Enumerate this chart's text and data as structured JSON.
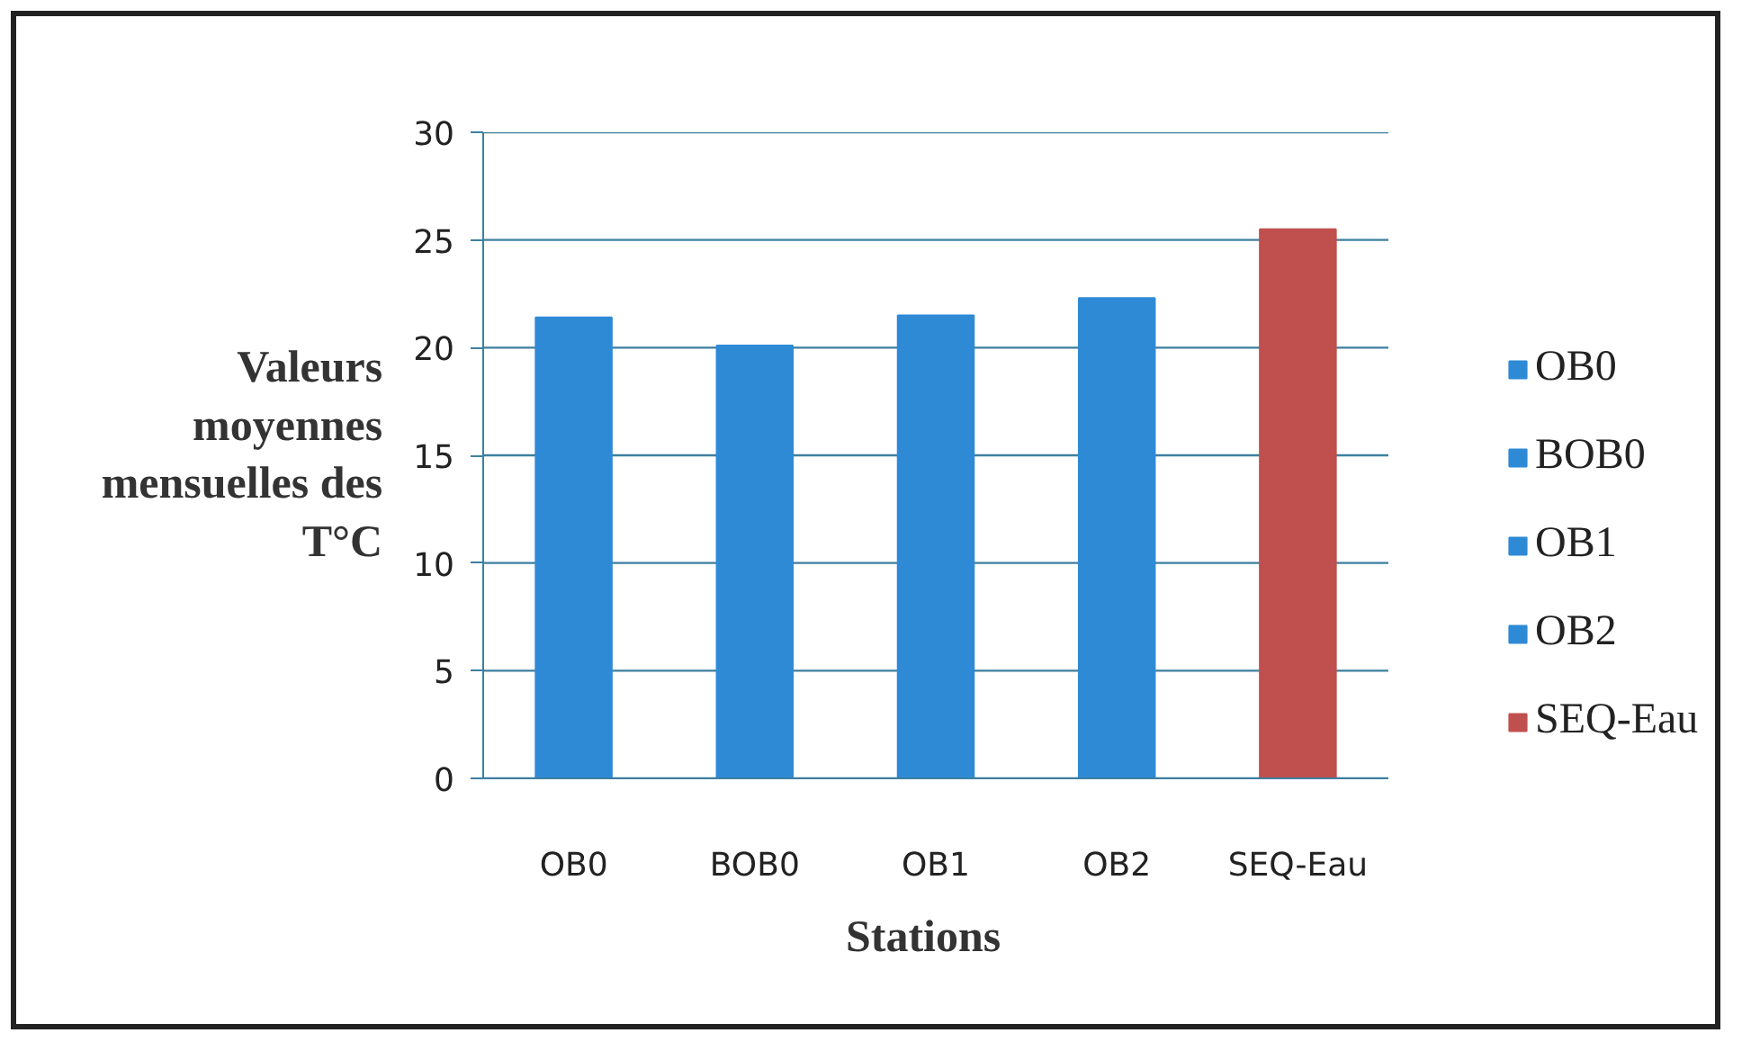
{
  "chart_data": {
    "type": "bar",
    "xlabel": "Stations",
    "ylabel": "Valeurs moyennes mensuelles des T°C",
    "categories": [
      "OB0",
      "BOB0",
      "OB1",
      "OB2",
      "SEQ-Eau"
    ],
    "series": [
      {
        "name": "OB0",
        "color": "#2f8ad6",
        "values": [
          21.4,
          null,
          null,
          null,
          null
        ]
      },
      {
        "name": "BOB0",
        "color": "#2f8ad6",
        "values": [
          null,
          20.1,
          null,
          null,
          null
        ]
      },
      {
        "name": "OB1",
        "color": "#2f8ad6",
        "values": [
          null,
          null,
          21.5,
          null,
          null
        ]
      },
      {
        "name": "OB2",
        "color": "#2f8ad6",
        "values": [
          null,
          null,
          null,
          22.3,
          null
        ]
      },
      {
        "name": "SEQ-Eau",
        "color": "#c0504d",
        "values": [
          null,
          null,
          null,
          null,
          25.5
        ]
      }
    ],
    "ylim": [
      0,
      30
    ],
    "yticks": [
      0,
      5,
      10,
      15,
      20,
      25,
      30
    ],
    "grid": "y",
    "legend": "right"
  }
}
